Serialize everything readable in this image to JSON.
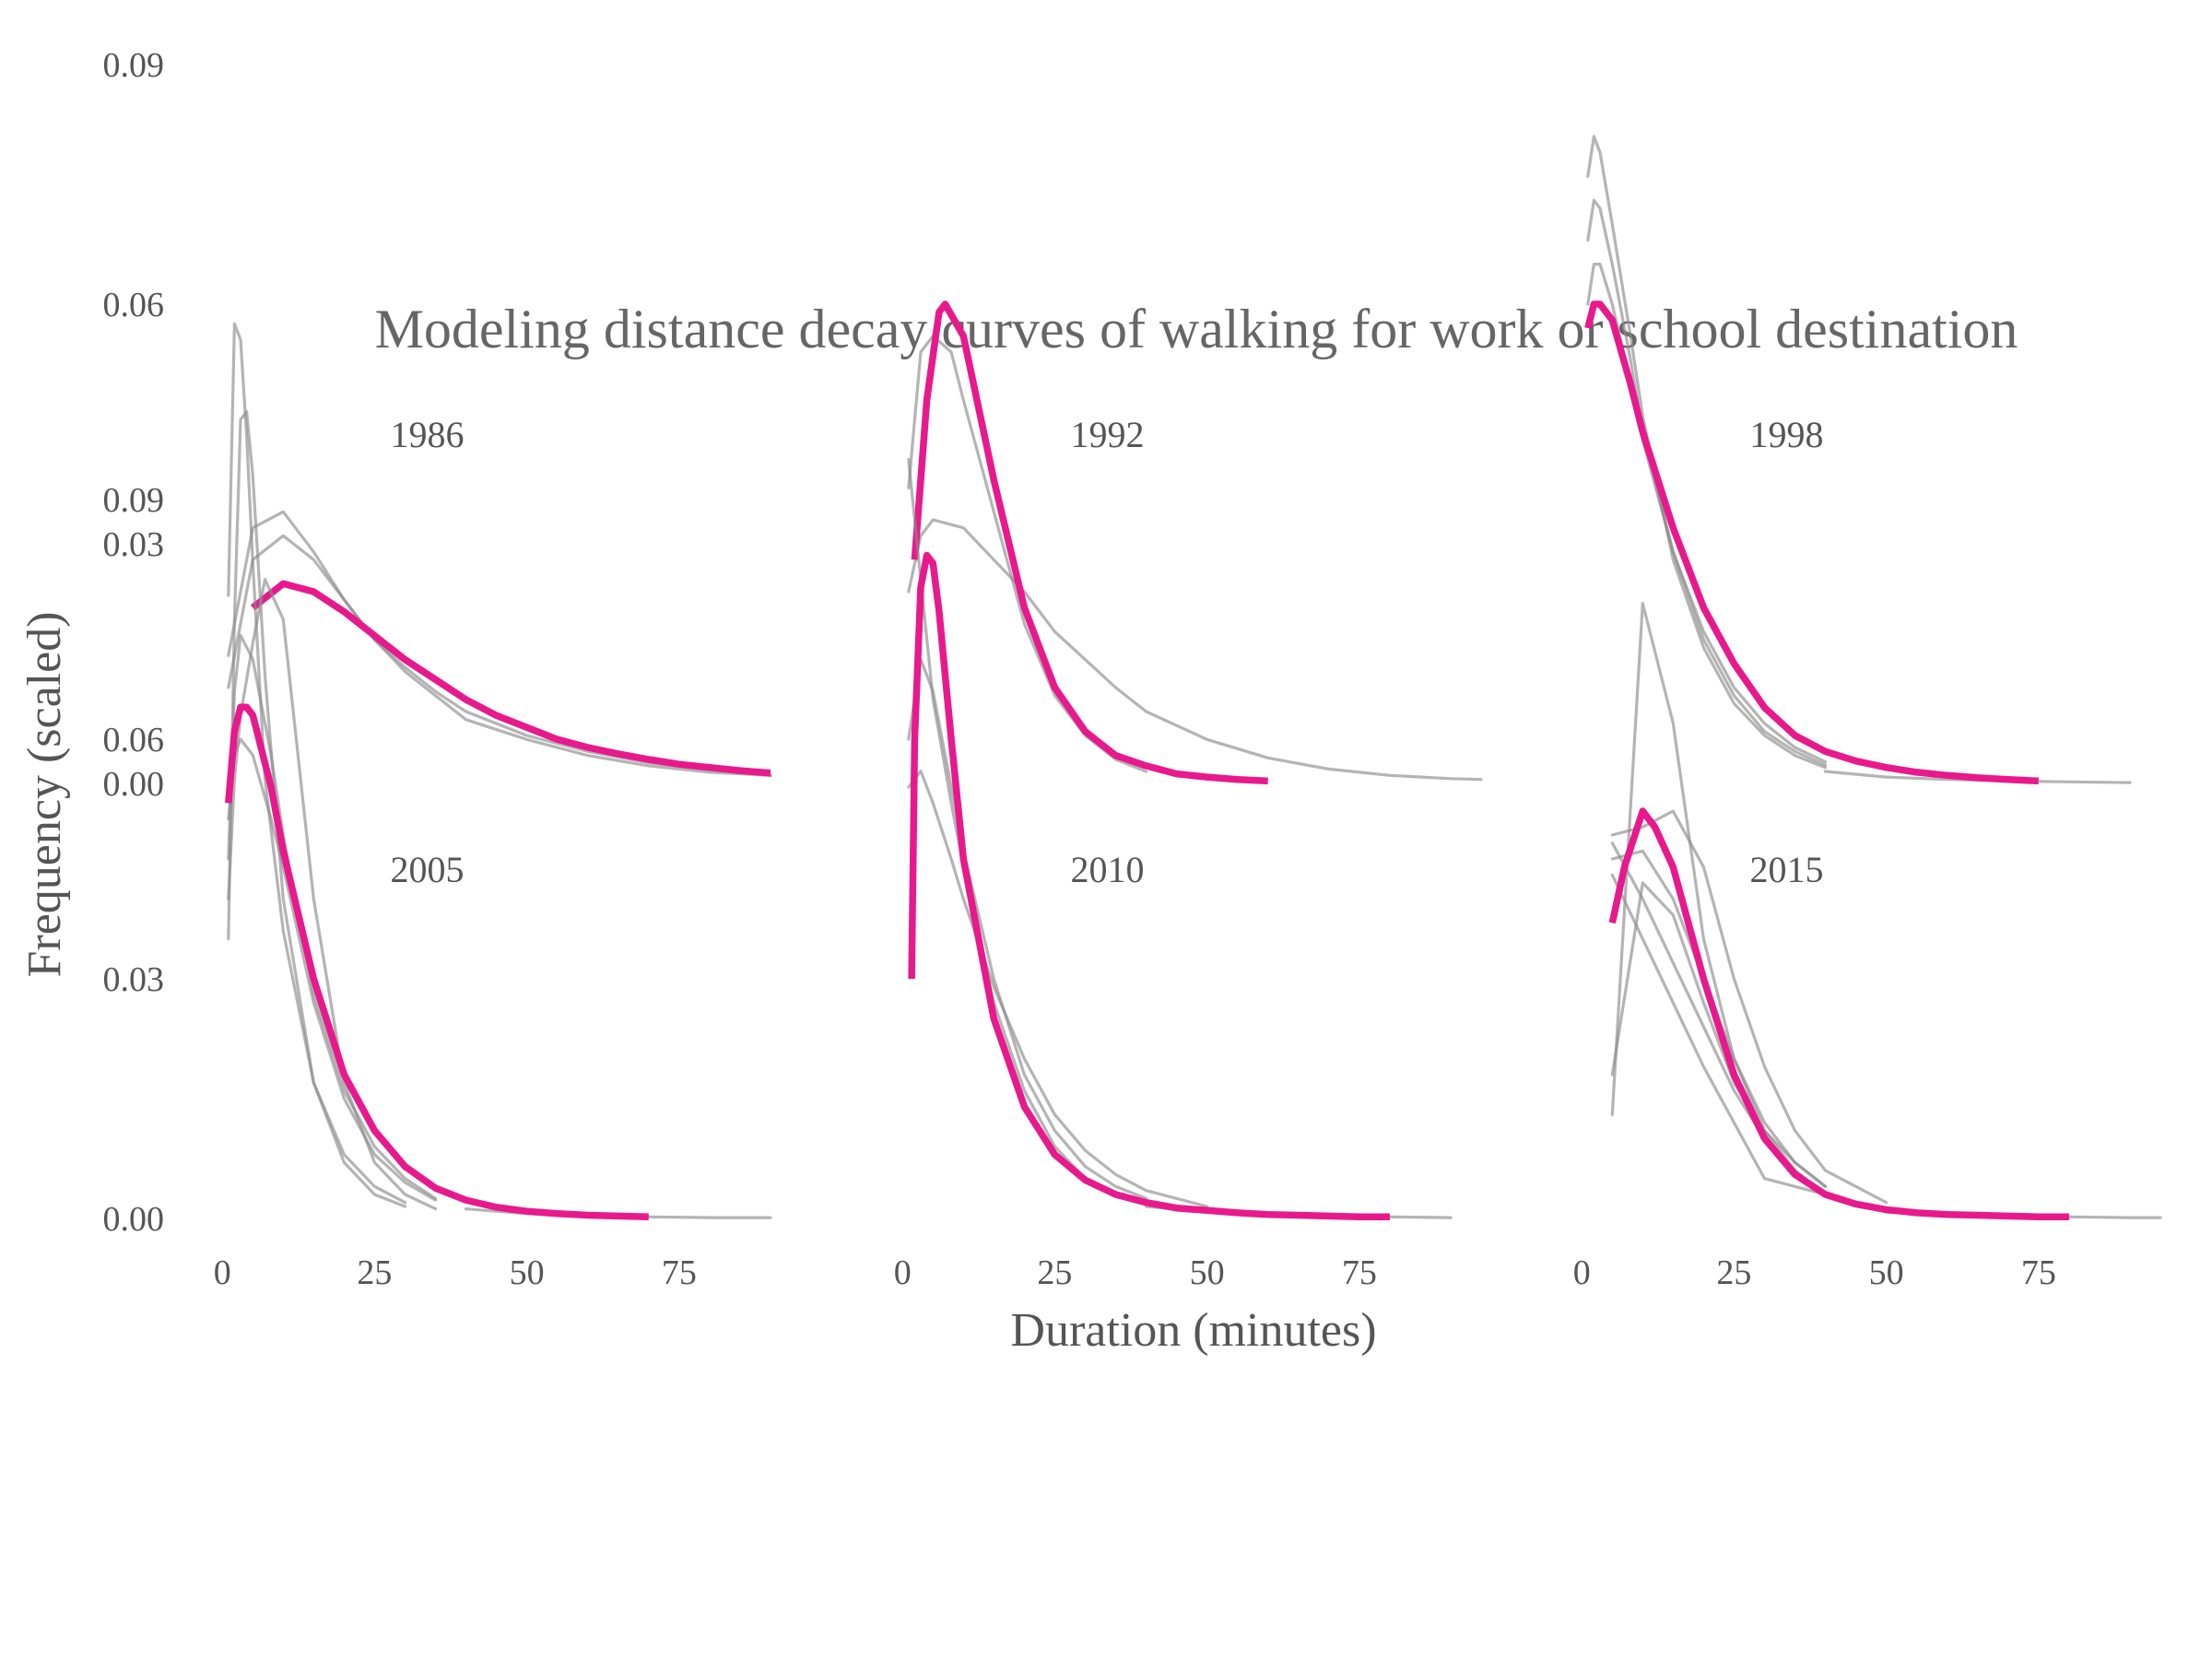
{
  "chart_data": {
    "type": "line",
    "title": "Modeling distance decay curves of walking for work or school destination",
    "xlabel": "Duration (minutes)",
    "ylabel": "Frequency (scaled)",
    "x_ticks": [
      0,
      25,
      50,
      75
    ],
    "y_ticks": [
      "0.00",
      "0.03",
      "0.06",
      "0.09"
    ],
    "xlim": [
      -2,
      95
    ],
    "ylim": [
      0,
      0.12
    ],
    "grid": false,
    "legend": "none",
    "colors": {
      "highlight": "#e8198c",
      "candidate": "#8c8c8c"
    },
    "panels": [
      {
        "label": "1986",
        "highlight": {
          "x": [
            5,
            10,
            15,
            20,
            25,
            30,
            35,
            40,
            45,
            50,
            55,
            60,
            65,
            70,
            75,
            80,
            85,
            90
          ],
          "y": [
            0.022,
            0.025,
            0.024,
            0.0215,
            0.0185,
            0.0155,
            0.013,
            0.0105,
            0.0085,
            0.007,
            0.0055,
            0.0045,
            0.0037,
            0.003,
            0.0024,
            0.002,
            0.0016,
            0.0013
          ]
        },
        "candidates": [
          {
            "x": [
              1,
              3,
              5,
              10,
              15,
              20,
              25,
              30,
              35,
              40,
              50,
              60,
              70,
              80,
              90
            ],
            "y": [
              0.016,
              0.024,
              0.032,
              0.034,
              0.029,
              0.023,
              0.018,
              0.014,
              0.011,
              0.008,
              0.0055,
              0.0035,
              0.0022,
              0.0014,
              0.001
            ]
          },
          {
            "x": [
              1,
              3,
              5,
              10,
              15,
              20,
              25,
              30,
              35,
              40,
              50,
              60,
              70,
              80,
              90
            ],
            "y": [
              0.012,
              0.02,
              0.028,
              0.031,
              0.028,
              0.023,
              0.018,
              0.0145,
              0.0115,
              0.009,
              0.006,
              0.004,
              0.0026,
              0.0017,
              0.001
            ]
          }
        ]
      },
      {
        "label": "1992",
        "highlight": {
          "x": [
            2,
            4,
            6,
            7,
            10,
            15,
            20,
            25,
            30,
            35,
            40,
            45,
            50,
            55,
            60
          ],
          "y": [
            0.028,
            0.048,
            0.059,
            0.06,
            0.056,
            0.038,
            0.022,
            0.012,
            0.0065,
            0.0035,
            0.0022,
            0.0012,
            0.0008,
            0.0005,
            0.0003
          ]
        },
        "candidates": [
          {
            "x": [
              1,
              3,
              5,
              8,
              10,
              15,
              20,
              25,
              30,
              35,
              40
            ],
            "y": [
              0.037,
              0.054,
              0.056,
              0.054,
              0.048,
              0.034,
              0.02,
              0.011,
              0.006,
              0.003,
              0.0015
            ]
          },
          {
            "x": [
              1,
              3,
              5,
              10,
              15,
              20,
              25,
              30,
              35,
              40,
              50,
              60,
              70,
              80,
              90,
              95
            ],
            "y": [
              0.024,
              0.031,
              0.033,
              0.032,
              0.028,
              0.024,
              0.019,
              0.0155,
              0.012,
              0.009,
              0.0055,
              0.0032,
              0.0018,
              0.001,
              0.0006,
              0.0005
            ]
          }
        ]
      },
      {
        "label": "1998",
        "highlight": {
          "x": [
            1,
            2,
            3,
            5,
            8,
            10,
            15,
            20,
            25,
            30,
            35,
            40,
            45,
            50,
            55,
            60,
            65,
            70,
            75
          ],
          "y": [
            0.057,
            0.06,
            0.06,
            0.058,
            0.05,
            0.044,
            0.032,
            0.022,
            0.015,
            0.0095,
            0.006,
            0.004,
            0.0028,
            0.002,
            0.0014,
            0.001,
            0.0007,
            0.0005,
            0.0003
          ]
        },
        "candidates": [
          {
            "x": [
              1,
              2,
              3,
              5,
              8,
              10,
              15,
              20,
              25,
              30,
              35,
              40
            ],
            "y": [
              0.076,
              0.081,
              0.079,
              0.07,
              0.056,
              0.046,
              0.028,
              0.017,
              0.01,
              0.006,
              0.0035,
              0.002
            ]
          },
          {
            "x": [
              1,
              2,
              3,
              5,
              8,
              10,
              15,
              20,
              25,
              30,
              35,
              40
            ],
            "y": [
              0.068,
              0.073,
              0.072,
              0.065,
              0.053,
              0.044,
              0.029,
              0.018,
              0.011,
              0.0065,
              0.004,
              0.0023
            ]
          },
          {
            "x": [
              1,
              2,
              3,
              5,
              8,
              10,
              15,
              20,
              25,
              30,
              35,
              40
            ],
            "y": [
              0.06,
              0.065,
              0.065,
              0.06,
              0.05,
              0.043,
              0.029,
              0.019,
              0.012,
              0.0075,
              0.0045,
              0.0027
            ]
          },
          {
            "x": [
              40,
              50,
              60,
              70,
              80,
              90
            ],
            "y": [
              0.0015,
              0.0008,
              0.0005,
              0.0003,
              0.0002,
              0.0001
            ]
          }
        ]
      },
      {
        "label": "2005",
        "highlight": {
          "x": [
            1,
            2,
            3,
            4,
            5,
            6,
            8,
            10,
            15,
            20,
            25,
            30,
            35,
            40,
            45,
            50,
            55,
            60,
            65,
            70
          ],
          "y": [
            0.052,
            0.061,
            0.064,
            0.064,
            0.063,
            0.06,
            0.054,
            0.046,
            0.03,
            0.018,
            0.011,
            0.0065,
            0.0038,
            0.0023,
            0.0014,
            0.0009,
            0.0006,
            0.0004,
            0.0003,
            0.0002
          ]
        },
        "candidates": [
          {
            "x": [
              1,
              2,
              3,
              4,
              5,
              7,
              10,
              15,
              20,
              25,
              30
            ],
            "y": [
              0.078,
              0.112,
              0.11,
              0.098,
              0.082,
              0.055,
              0.036,
              0.017,
              0.008,
              0.004,
              0.002
            ]
          },
          {
            "x": [
              1,
              2,
              3,
              4,
              5,
              7,
              10,
              15,
              20,
              25,
              30
            ],
            "y": [
              0.035,
              0.075,
              0.1,
              0.101,
              0.093,
              0.068,
              0.04,
              0.017,
              0.007,
              0.003,
              0.0015
            ]
          },
          {
            "x": [
              1,
              2,
              3,
              5,
              7,
              10,
              15,
              20,
              25,
              30,
              35
            ],
            "y": [
              0.04,
              0.055,
              0.063,
              0.072,
              0.08,
              0.075,
              0.04,
              0.017,
              0.007,
              0.003,
              0.0012
            ]
          },
          {
            "x": [
              1,
              2,
              3,
              5,
              8,
              10,
              15,
              20,
              25,
              30,
              35
            ],
            "y": [
              0.045,
              0.066,
              0.073,
              0.07,
              0.058,
              0.048,
              0.028,
              0.016,
              0.009,
              0.005,
              0.0025
            ]
          },
          {
            "x": [
              1,
              2,
              3,
              5,
              8,
              10,
              15,
              20,
              25,
              30,
              35
            ],
            "y": [
              0.05,
              0.058,
              0.06,
              0.058,
              0.05,
              0.044,
              0.027,
              0.015,
              0.008,
              0.0045,
              0.0023
            ]
          },
          {
            "x": [
              40,
              50,
              60,
              70,
              80,
              90
            ],
            "y": [
              0.0012,
              0.0006,
              0.0003,
              0.0002,
              0.0001,
              0.0001
            ]
          }
        ]
      },
      {
        "label": "2010",
        "highlight": {
          "x": [
            1.5,
            2,
            3,
            4,
            5,
            6,
            8,
            10,
            15,
            20,
            25,
            30,
            35,
            40,
            45,
            50,
            55,
            60,
            65,
            70,
            75,
            80
          ],
          "y": [
            0.03,
            0.06,
            0.079,
            0.083,
            0.082,
            0.076,
            0.06,
            0.045,
            0.025,
            0.014,
            0.008,
            0.0048,
            0.003,
            0.002,
            0.0013,
            0.001,
            0.0007,
            0.0005,
            0.0004,
            0.0003,
            0.0002,
            0.0002
          ]
        },
        "candidates": [
          {
            "x": [
              1,
              3,
              5,
              8,
              10,
              15,
              20,
              25,
              30
            ],
            "y": [
              0.095,
              0.08,
              0.065,
              0.052,
              0.044,
              0.027,
              0.016,
              0.009,
              0.005
            ]
          },
          {
            "x": [
              1,
              3,
              5,
              8,
              10,
              15,
              20,
              25,
              30,
              35,
              40
            ],
            "y": [
              0.06,
              0.07,
              0.066,
              0.054,
              0.046,
              0.03,
              0.018,
              0.011,
              0.0065,
              0.004,
              0.0025
            ]
          },
          {
            "x": [
              1,
              3,
              5,
              8,
              10,
              15,
              20,
              25,
              30,
              35,
              40,
              50
            ],
            "y": [
              0.054,
              0.056,
              0.052,
              0.045,
              0.04,
              0.029,
              0.02,
              0.013,
              0.0085,
              0.0055,
              0.0035,
              0.0015
            ]
          },
          {
            "x": [
              40,
              50,
              60,
              70,
              80,
              90
            ],
            "y": [
              0.0015,
              0.0008,
              0.0005,
              0.0003,
              0.0002,
              0.0001
            ]
          }
        ]
      },
      {
        "label": "2015",
        "highlight": {
          "x": [
            5,
            7,
            10,
            12,
            15,
            20,
            25,
            30,
            35,
            40,
            45,
            50,
            55,
            60,
            65,
            70,
            75,
            80
          ],
          "y": [
            0.037,
            0.044,
            0.051,
            0.049,
            0.044,
            0.03,
            0.018,
            0.01,
            0.0055,
            0.003,
            0.0018,
            0.0011,
            0.0007,
            0.0005,
            0.0004,
            0.0003,
            0.0002,
            0.0002
          ]
        },
        "candidates": [
          {
            "x": [
              5,
              10,
              15,
              20,
              25,
              30,
              35,
              40
            ],
            "y": [
              0.013,
              0.077,
              0.062,
              0.035,
              0.02,
              0.011,
              0.006,
              0.003
            ]
          },
          {
            "x": [
              5,
              10,
              15,
              20,
              25,
              30,
              35,
              40,
              50
            ],
            "y": [
              0.048,
              0.049,
              0.051,
              0.044,
              0.03,
              0.019,
              0.011,
              0.006,
              0.002
            ]
          },
          {
            "x": [
              5,
              10,
              15,
              20,
              25,
              30,
              35,
              40
            ],
            "y": [
              0.045,
              0.046,
              0.04,
              0.03,
              0.02,
              0.012,
              0.007,
              0.004
            ]
          },
          {
            "x": [
              5,
              10,
              15,
              20,
              25,
              30,
              35,
              40
            ],
            "y": [
              0.047,
              0.04,
              0.032,
              0.024,
              0.016,
              0.01,
              0.006,
              0.003
            ]
          },
          {
            "x": [
              5,
              10,
              15,
              20,
              25,
              30,
              40
            ],
            "y": [
              0.043,
              0.035,
              0.027,
              0.019,
              0.012,
              0.005,
              0.003
            ]
          },
          {
            "x": [
              5,
              10,
              15,
              20,
              25,
              30,
              35,
              40
            ],
            "y": [
              0.018,
              0.042,
              0.038,
              0.027,
              0.017,
              0.011,
              0.007,
              0.004
            ]
          },
          {
            "x": [
              50,
              60,
              70,
              80,
              90,
              95
            ],
            "y": [
              0.0008,
              0.0005,
              0.0003,
              0.0002,
              0.0001,
              0.0001
            ]
          }
        ]
      }
    ]
  }
}
